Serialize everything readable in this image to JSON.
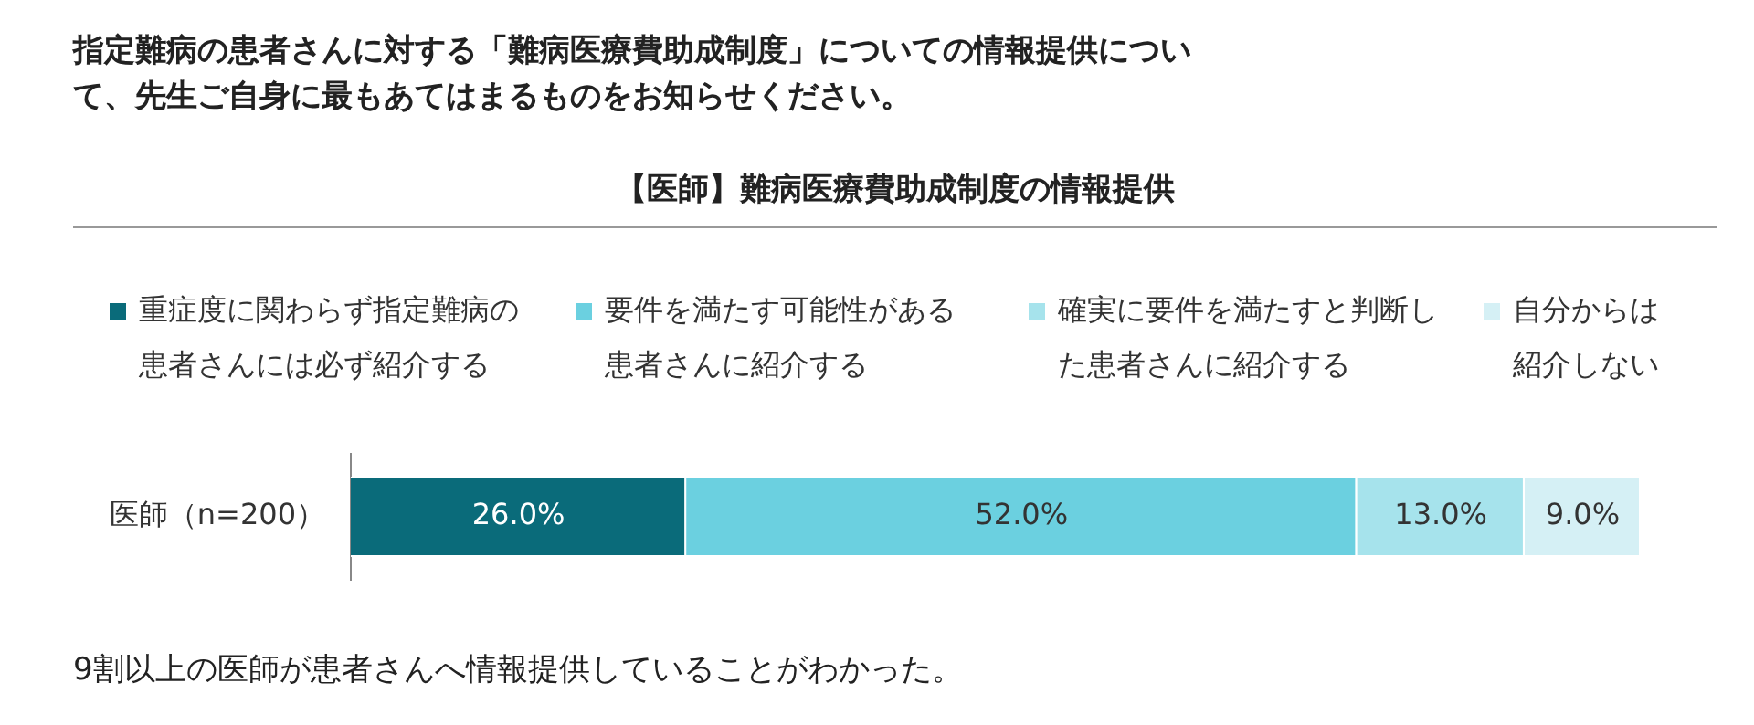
{
  "chart_data": {
    "type": "bar",
    "orientation": "horizontal",
    "stacked": true,
    "title": "指定難病の患者さんに対する「難病医療費助成制度」についての情報提供について、先生ご自身に最もあてはまるものをお知らせください。",
    "subtitle": "【医師】難病医療費助成制度の情報提供",
    "categories": [
      "医師（n=200）"
    ],
    "series": [
      {
        "name": "重症度に関わらず指定難病の患者さんには必ず紹介する",
        "color": "#0a6b7a",
        "values": [
          26.0
        ],
        "value_labels": [
          "26.0%"
        ]
      },
      {
        "name": "要件を満たす可能性がある患者さんに紹介する",
        "color": "#6bd0e0",
        "values": [
          52.0
        ],
        "value_labels": [
          "52.0%"
        ]
      },
      {
        "name": "確実に要件を満たすと判断した患者さんに紹介する",
        "color": "#a6e3ec",
        "values": [
          13.0
        ],
        "value_labels": [
          "13.0%"
        ]
      },
      {
        "name": "自分からは紹介しない",
        "color": "#d5f0f5",
        "values": [
          9.0
        ],
        "value_labels": [
          "9.0%"
        ]
      }
    ],
    "xlim": [
      0,
      100
    ],
    "tick_labels": "y",
    "legend": "top",
    "annotations": [
      "9割以上の医師が患者さんへ情報提供していることがわかった。"
    ]
  }
}
